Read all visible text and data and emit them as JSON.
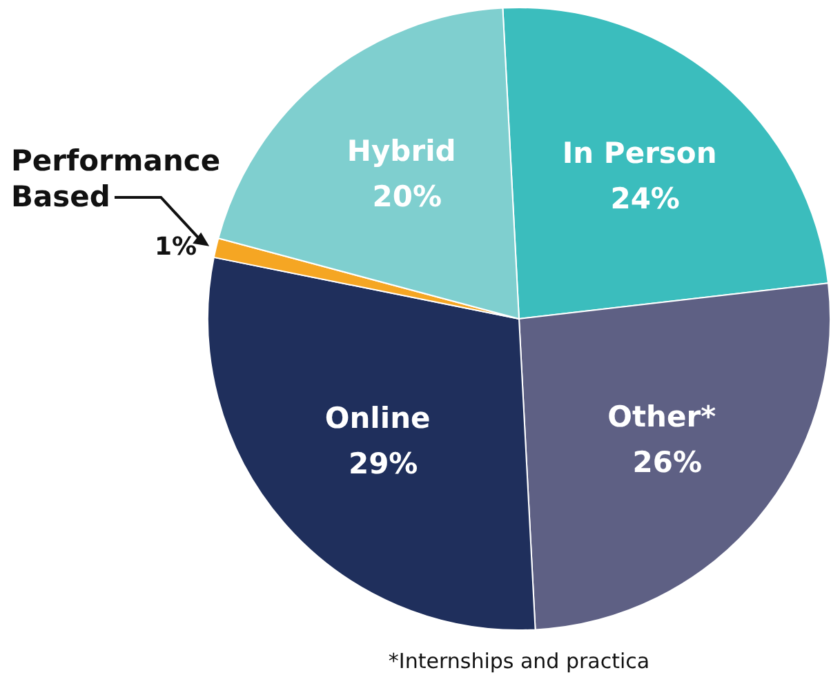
{
  "chart_data": {
    "type": "pie",
    "categories": [
      "In Person",
      "Other*",
      "Online",
      "Performance Based",
      "Hybrid"
    ],
    "values": [
      24,
      26,
      29,
      1,
      20
    ],
    "colors": [
      "#3bbdbd",
      "#5e6084",
      "#1f2f5c",
      "#f5a623",
      "#7fcfcf"
    ],
    "value_labels": [
      "24%",
      "26%",
      "29%",
      "1%",
      "20%"
    ],
    "annotations": [
      "*Internships and practica"
    ],
    "legend": false
  }
}
